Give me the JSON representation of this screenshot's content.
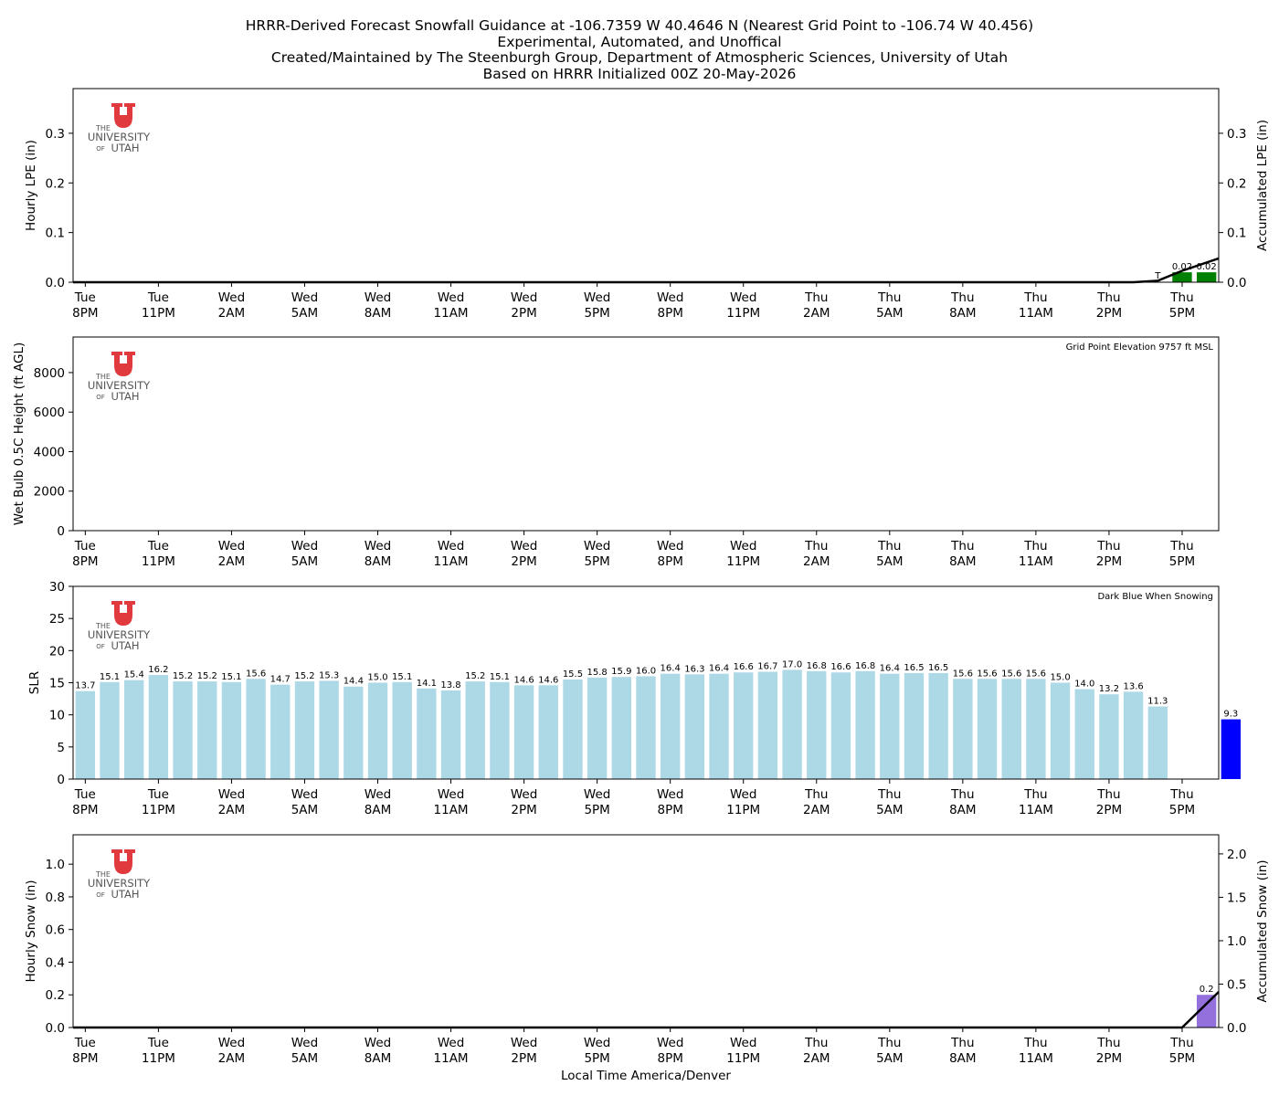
{
  "title_lines": [
    "HRRR-Derived Forecast Snowfall Guidance at -106.7359 W 40.4646 N (Nearest Grid Point to -106.74 W 40.456)",
    "Experimental, Automated, and Unoffical",
    "Created/Maintained by The Steenburgh Group, Department of Atmospheric Sciences, University of Utah",
    "Based on HRRR Initialized 00Z 20-May-2026"
  ],
  "logo": {
    "line1": "THE",
    "line2": "UNIVERSITY",
    "line3_small": "OF",
    "line3": "UTAH",
    "color": "#e03a3e"
  },
  "x_axis": {
    "label": "Local Time America/Denver",
    "ticks": [
      {
        "day": "Tue",
        "time": "8PM"
      },
      {
        "day": "Tue",
        "time": "11PM"
      },
      {
        "day": "Wed",
        "time": "2AM"
      },
      {
        "day": "Wed",
        "time": "5AM"
      },
      {
        "day": "Wed",
        "time": "8AM"
      },
      {
        "day": "Wed",
        "time": "11AM"
      },
      {
        "day": "Wed",
        "time": "2PM"
      },
      {
        "day": "Wed",
        "time": "5PM"
      },
      {
        "day": "Wed",
        "time": "8PM"
      },
      {
        "day": "Wed",
        "time": "11PM"
      },
      {
        "day": "Thu",
        "time": "2AM"
      },
      {
        "day": "Thu",
        "time": "5AM"
      },
      {
        "day": "Thu",
        "time": "8AM"
      },
      {
        "day": "Thu",
        "time": "11AM"
      },
      {
        "day": "Thu",
        "time": "2PM"
      },
      {
        "day": "Thu",
        "time": "5PM"
      }
    ]
  },
  "chart_data": [
    {
      "type": "bar",
      "ylabel": "Hourly LPE (in)",
      "y2label": "Accumulated LPE (in)",
      "ylim": [
        0,
        0.39
      ],
      "yticks": [
        "0.0",
        "0.1",
        "0.2",
        "0.3"
      ],
      "y2ticks": [
        "0.0",
        "0.1",
        "0.2",
        "0.3"
      ],
      "bar_color": "#008000",
      "bars": [
        {
          "hour": 45,
          "value": 0.02,
          "label": "0.02"
        },
        {
          "hour": 46,
          "value": 0.02,
          "label": "0.02"
        }
      ],
      "trace_label": {
        "hour": 44,
        "text": "T"
      },
      "accumulated": {
        "hours": [
          0,
          43,
          44,
          45,
          46.5
        ],
        "values": [
          0,
          0,
          0.003,
          0.023,
          0.048
        ]
      }
    },
    {
      "type": "bar",
      "ylabel": "Wet Bulb 0.5C Height (ft AGL)",
      "ylim": [
        0,
        9800
      ],
      "yticks": [
        "0",
        "2000",
        "4000",
        "6000",
        "8000"
      ],
      "annotation": "Grid Point Elevation 9757 ft MSL",
      "bars": []
    },
    {
      "type": "bar",
      "ylabel": "SLR",
      "ylim": [
        0,
        30
      ],
      "yticks": [
        "0",
        "5",
        "10",
        "15",
        "20",
        "25",
        "30"
      ],
      "annotation": "Dark Blue When Snowing",
      "bar_color": "#add8e6",
      "snow_color": "#0000ff",
      "values": [
        13.7,
        15.1,
        15.4,
        16.2,
        15.2,
        15.2,
        15.1,
        15.6,
        14.7,
        15.2,
        15.3,
        14.4,
        15.0,
        15.1,
        14.1,
        13.8,
        15.2,
        15.1,
        14.6,
        14.6,
        15.5,
        15.8,
        15.9,
        16.0,
        16.4,
        16.3,
        16.4,
        16.6,
        16.7,
        17.0,
        16.8,
        16.6,
        16.8,
        16.4,
        16.5,
        16.5,
        15.6,
        15.6,
        15.6,
        15.6,
        15.0,
        14.0,
        13.2,
        13.6,
        11.3,
        null,
        null,
        9.3
      ],
      "labels": [
        "13.7",
        "15.1",
        "15.4",
        "16.2",
        "15.2",
        "15.2",
        "15.1",
        "15.6",
        "14.7",
        "15.2",
        "15.3",
        "14.4",
        "15.0",
        "15.1",
        "14.1",
        "13.8",
        "15.2",
        "15.1",
        "14.6",
        "14.6",
        "15.5",
        "15.8",
        "15.9",
        "16.0",
        "16.4",
        "16.3",
        "16.4",
        "16.6",
        "16.7",
        "17.0",
        "16.8",
        "16.6",
        "16.8",
        "16.4",
        "16.5",
        "16.5",
        "15.6",
        "15.6",
        "15.6",
        "15.6",
        "15.0",
        "14.0",
        "13.2",
        "13.6",
        "11.3",
        "",
        "",
        "9.3"
      ],
      "snowing": [
        false,
        false,
        false,
        false,
        false,
        false,
        false,
        false,
        false,
        false,
        false,
        false,
        false,
        false,
        false,
        false,
        false,
        false,
        false,
        false,
        false,
        false,
        false,
        false,
        false,
        false,
        false,
        false,
        false,
        false,
        false,
        false,
        false,
        false,
        false,
        false,
        false,
        false,
        false,
        false,
        false,
        false,
        false,
        false,
        false,
        false,
        false,
        true
      ]
    },
    {
      "type": "bar",
      "ylabel": "Hourly Snow (in)",
      "y2label": "Accumulated Snow (in)",
      "ylim": [
        0,
        1.18
      ],
      "yticks": [
        "0.0",
        "0.2",
        "0.4",
        "0.6",
        "0.8",
        "1.0"
      ],
      "y2ticks": [
        "0.0",
        "0.5",
        "1.0",
        "1.5",
        "2.0"
      ],
      "bar_color": "#9370db",
      "bars": [
        {
          "hour": 46,
          "value": 0.2,
          "label": "0.2"
        }
      ],
      "accumulated": {
        "hours": [
          0,
          45,
          46.5
        ],
        "values": [
          0,
          0,
          0.41
        ]
      }
    }
  ]
}
